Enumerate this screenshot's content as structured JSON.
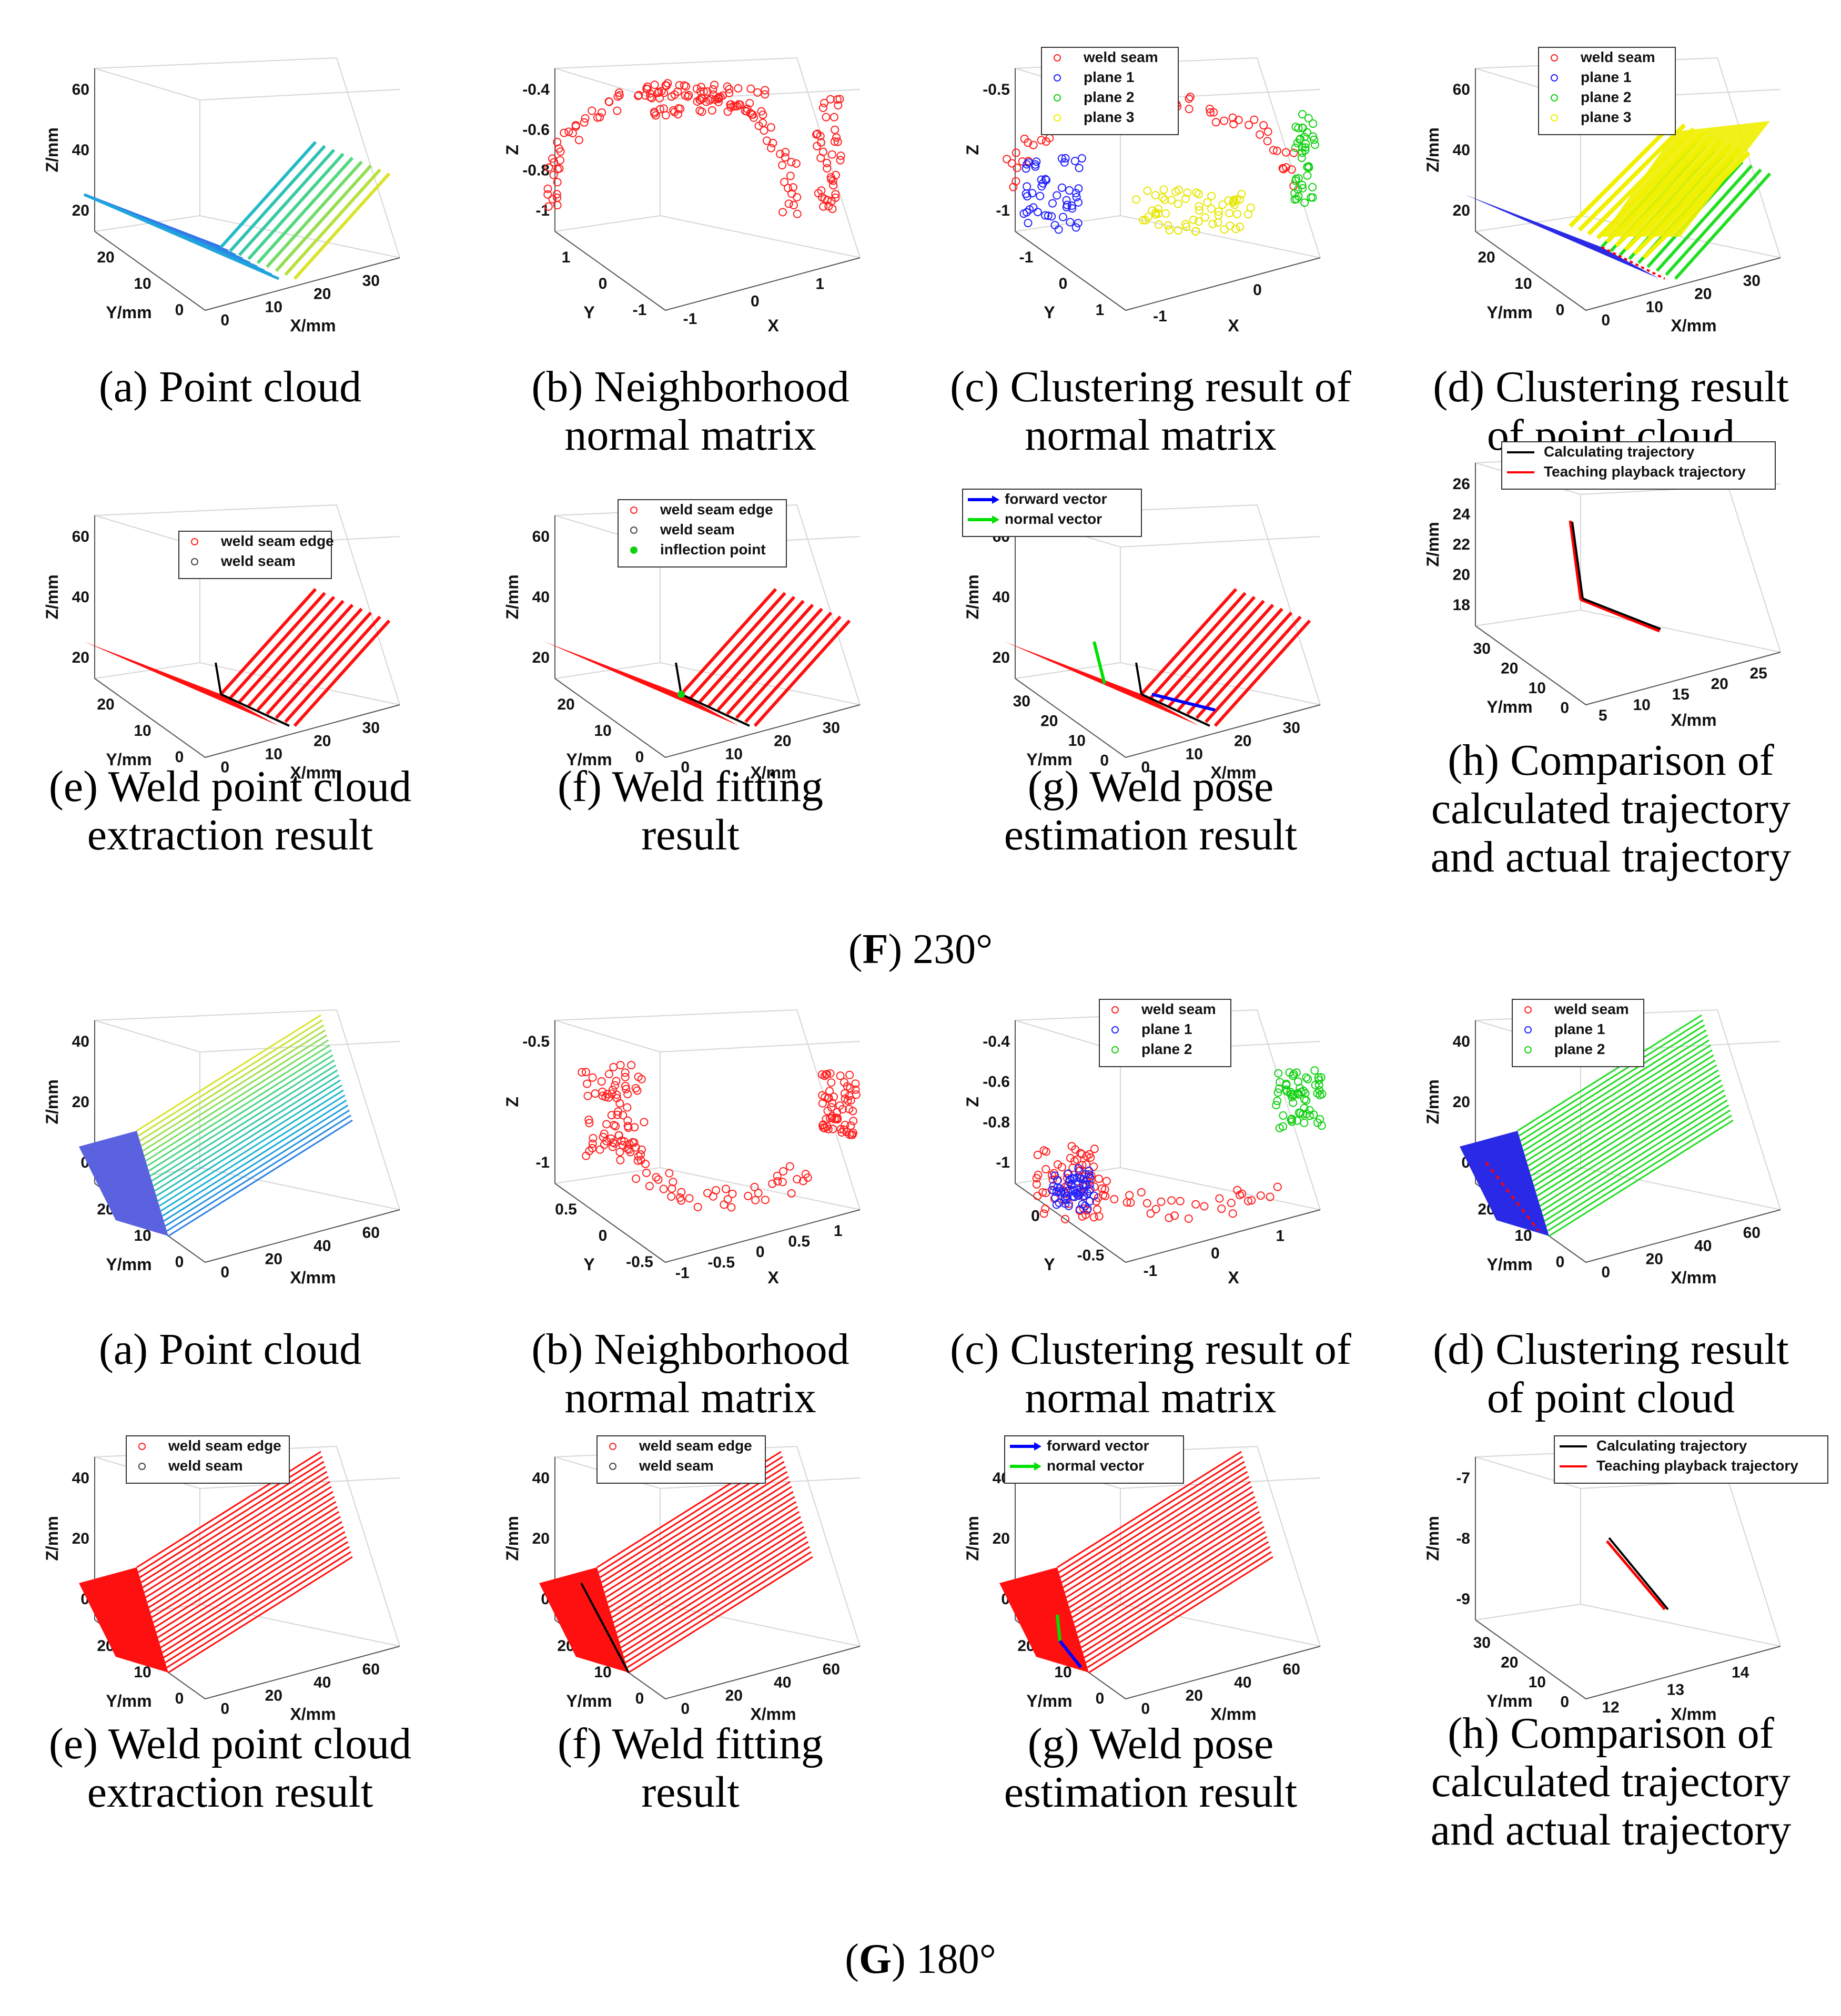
{
  "figures": [
    {
      "label_prefix": "F",
      "label_suffix": "230°",
      "panels": [
        {
          "caption": [
            "(a) Point cloud"
          ],
          "xlabel": "X/mm",
          "ylabel": "Y/mm",
          "zlabel": "Z/mm",
          "zticks": [
            "60",
            "40",
            "20"
          ],
          "yticks": [
            "20",
            "10",
            "0"
          ],
          "xticks": [
            "0",
            "10",
            "20",
            "30"
          ],
          "legend": []
        },
        {
          "caption": [
            "(b) Neighborhood",
            "normal matrix"
          ],
          "xlabel": "X",
          "ylabel": "Y",
          "zlabel": "Z",
          "zticks": [
            "-0.4",
            "-0.6",
            "-0.8",
            "-1"
          ],
          "yticks": [
            "1",
            "0",
            "-1"
          ],
          "xticks": [
            "-1",
            "0",
            "1"
          ],
          "legend": []
        },
        {
          "caption": [
            "(c) Clustering result of",
            "normal matrix"
          ],
          "xlabel": "X",
          "ylabel": "Y",
          "zlabel": "Z",
          "zticks": [
            "-0.5",
            "-1"
          ],
          "yticks": [
            "-1",
            "0",
            "1"
          ],
          "xticks": [
            "-1",
            "0"
          ],
          "legend": [
            "weld seam",
            "plane 1",
            "plane 2",
            "plane 3"
          ]
        },
        {
          "caption": [
            "(d) Clustering result",
            "of point cloud"
          ],
          "xlabel": "X/mm",
          "ylabel": "Y/mm",
          "zlabel": "Z/mm",
          "zticks": [
            "60",
            "40",
            "20"
          ],
          "yticks": [
            "20",
            "10",
            "0"
          ],
          "xticks": [
            "0",
            "10",
            "20",
            "30"
          ],
          "legend": [
            "weld seam",
            "plane 1",
            "plane 2",
            "plane 3"
          ]
        },
        {
          "caption": [
            "(e) Weld point cloud",
            "extraction result"
          ],
          "xlabel": "X/mm",
          "ylabel": "Y/mm",
          "zlabel": "Z/mm",
          "zticks": [
            "60",
            "40",
            "20"
          ],
          "yticks": [
            "20",
            "10",
            "0"
          ],
          "xticks": [
            "0",
            "10",
            "20",
            "30"
          ],
          "legend": [
            "weld seam edge",
            "weld seam"
          ]
        },
        {
          "caption": [
            "(f) Weld fitting",
            "result"
          ],
          "xlabel": "X/mm",
          "ylabel": "Y/mm",
          "zlabel": "Z/mm",
          "zticks": [
            "60",
            "40",
            "20"
          ],
          "yticks": [
            "20",
            "10",
            "0"
          ],
          "xticks": [
            "0",
            "10",
            "20",
            "30"
          ],
          "legend": [
            "weld seam edge",
            "weld seam",
            "inflection point"
          ]
        },
        {
          "caption": [
            "(g) Weld pose",
            "estimation result"
          ],
          "xlabel": "X/mm",
          "ylabel": "Y/mm",
          "zlabel": "Z/mm",
          "zticks": [
            "60",
            "40",
            "20"
          ],
          "yticks": [
            "30",
            "20",
            "10",
            "0"
          ],
          "xticks": [
            "0",
            "10",
            "20",
            "30"
          ],
          "legend": [
            "forward vector",
            "normal vector"
          ]
        },
        {
          "caption": [
            "(h) Comparison of",
            "calculated trajectory",
            "and actual trajectory"
          ],
          "xlabel": "X/mm",
          "ylabel": "Y/mm",
          "zlabel": "Z/mm",
          "zticks": [
            "26",
            "24",
            "22",
            "20",
            "18"
          ],
          "yticks": [
            "30",
            "20",
            "10",
            "0"
          ],
          "xticks": [
            "5",
            "10",
            "15",
            "20",
            "25"
          ],
          "legend": [
            "Calculating trajectory",
            "Teaching playback trajectory"
          ]
        }
      ]
    },
    {
      "label_prefix": "G",
      "label_suffix": "180°",
      "panels": [
        {
          "caption": [
            "(a) Point cloud"
          ],
          "xlabel": "X/mm",
          "ylabel": "Y/mm",
          "zlabel": "Z/mm",
          "zticks": [
            "40",
            "20",
            "0"
          ],
          "yticks": [
            "20",
            "10",
            "0"
          ],
          "xticks": [
            "0",
            "20",
            "40",
            "60"
          ],
          "legend": []
        },
        {
          "caption": [
            "(b) Neighborhood",
            "normal matrix"
          ],
          "xlabel": "X",
          "ylabel": "Y",
          "zlabel": "Z",
          "zticks": [
            "-0.5",
            "-1"
          ],
          "yticks": [
            "0.5",
            "0",
            "-0.5"
          ],
          "xticks": [
            "-1",
            "-0.5",
            "0",
            "0.5",
            "1"
          ],
          "legend": []
        },
        {
          "caption": [
            "(c) Clustering result of",
            "normal matrix"
          ],
          "xlabel": "X",
          "ylabel": "Y",
          "zlabel": "Z",
          "zticks": [
            "-0.4",
            "-0.6",
            "-0.8",
            "-1"
          ],
          "yticks": [
            "0",
            "-0.5"
          ],
          "xticks": [
            "-1",
            "0",
            "1"
          ],
          "legend": [
            "weld seam",
            "plane 1",
            "plane 2"
          ]
        },
        {
          "caption": [
            "(d) Clustering result",
            "of point cloud"
          ],
          "xlabel": "X/mm",
          "ylabel": "Y/mm",
          "zlabel": "Z/mm",
          "zticks": [
            "40",
            "20",
            "0"
          ],
          "yticks": [
            "20",
            "10",
            "0"
          ],
          "xticks": [
            "0",
            "20",
            "40",
            "60"
          ],
          "legend": [
            "weld seam",
            "plane 1",
            "plane 2"
          ]
        },
        {
          "caption": [
            "(e) Weld point cloud",
            "extraction result"
          ],
          "xlabel": "X/mm",
          "ylabel": "Y/mm",
          "zlabel": "Z/mm",
          "zticks": [
            "40",
            "20",
            "0"
          ],
          "yticks": [
            "20",
            "10",
            "0"
          ],
          "xticks": [
            "0",
            "20",
            "40",
            "60"
          ],
          "legend": [
            "weld seam edge",
            "weld seam"
          ]
        },
        {
          "caption": [
            "(f) Weld fitting",
            "result"
          ],
          "xlabel": "X/mm",
          "ylabel": "Y/mm",
          "zlabel": "Z/mm",
          "zticks": [
            "40",
            "20",
            "0"
          ],
          "yticks": [
            "20",
            "10",
            "0"
          ],
          "xticks": [
            "0",
            "20",
            "40",
            "60"
          ],
          "legend": [
            "weld seam edge",
            "weld seam"
          ]
        },
        {
          "caption": [
            "(g) Weld pose",
            "estimation result"
          ],
          "xlabel": "X/mm",
          "ylabel": "Y/mm",
          "zlabel": "Z/mm",
          "zticks": [
            "40",
            "20",
            "0"
          ],
          "yticks": [
            "20",
            "10",
            "0"
          ],
          "xticks": [
            "0",
            "20",
            "40",
            "60"
          ],
          "legend": [
            "forward vector",
            "normal vector"
          ]
        },
        {
          "caption": [
            "(h) Comparison of",
            "calculated trajectory",
            "and actual trajectory"
          ],
          "xlabel": "X/mm",
          "ylabel": "Y/mm",
          "zlabel": "Z/mm",
          "zticks": [
            "-7",
            "-8",
            "-9"
          ],
          "yticks": [
            "30",
            "20",
            "10",
            "0"
          ],
          "xticks": [
            "12",
            "13",
            "14"
          ],
          "legend": [
            "Calculating trajectory",
            "Teaching playback trajectory"
          ]
        }
      ]
    }
  ],
  "legend_colors": {
    "weld seam": "#ff2020",
    "weld seam edge": "#ff2020",
    "plane 1": "#2020ff",
    "plane 2": "#10d010",
    "plane 3": "#f0f000",
    "inflection point": "#10d010",
    "forward vector": "#0000ff",
    "normal vector": "#00e000",
    "Calculating trajectory": "#000000",
    "Teaching playback trajectory": "#ff0000"
  }
}
